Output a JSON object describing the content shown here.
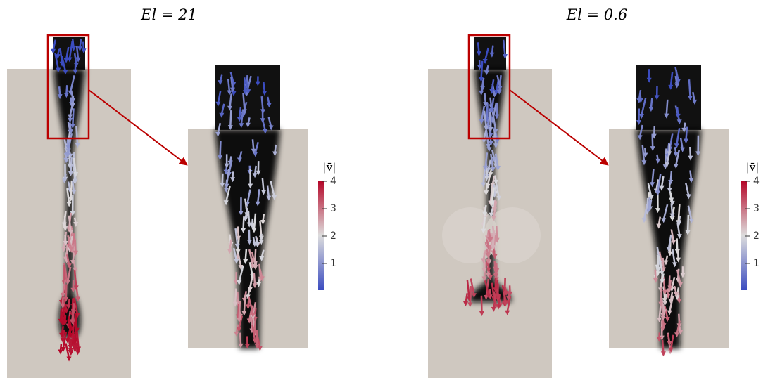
{
  "panels": [
    {
      "title": "El = 21",
      "colorbar": {
        "label": "|v̄|",
        "ticks": [
          1,
          2,
          3,
          4
        ]
      }
    },
    {
      "title": "El = 0.6",
      "colorbar": {
        "label": "|v̄|",
        "ticks": [
          1,
          2,
          3,
          4
        ]
      }
    }
  ]
}
